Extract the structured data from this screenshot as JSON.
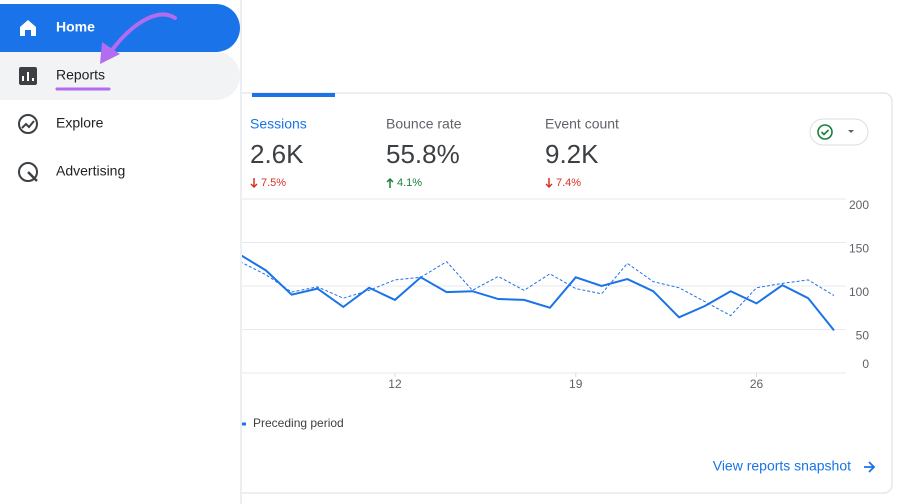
{
  "sidebar": {
    "items": [
      "Home",
      "Reports",
      "Explore",
      "Advertising"
    ]
  },
  "metrics": [
    {
      "label": "Sessions",
      "value": "2.6K",
      "change": "7.5%"
    },
    {
      "label": "Bounce rate",
      "value": "55.8%",
      "change": "4.1%"
    },
    {
      "label": "Event count",
      "value": "9.2K",
      "change": "7.4%"
    }
  ],
  "chart": {
    "type": "line",
    "x": [
      6,
      7,
      8,
      9,
      10,
      11,
      12,
      13,
      14,
      15,
      16,
      17,
      18,
      19,
      20,
      21,
      22,
      23,
      24,
      25,
      26,
      27,
      28,
      29
    ],
    "xlim": [
      6,
      29
    ],
    "xticks": [
      12,
      19,
      26
    ],
    "ylim": [
      0,
      200
    ],
    "yticks": [
      0,
      50,
      100,
      150,
      200
    ],
    "grid": true,
    "series": [
      {
        "color": "#1a73e8",
        "values": [
          136,
          118,
          90,
          97,
          76,
          98,
          84,
          110,
          93,
          94,
          85,
          84,
          75,
          110,
          100,
          108,
          94,
          64,
          77,
          94,
          80,
          101,
          86,
          49
        ]
      },
      {
        "name": "Preceding period",
        "color": "#1a73e8",
        "dashed": true,
        "values": [
          128,
          113,
          93,
          99,
          86,
          95,
          107,
          110,
          128,
          95,
          111,
          95,
          114,
          97,
          91,
          126,
          105,
          98,
          82,
          66,
          98,
          103,
          107,
          89
        ]
      }
    ]
  },
  "link": "View reports snapshot"
}
